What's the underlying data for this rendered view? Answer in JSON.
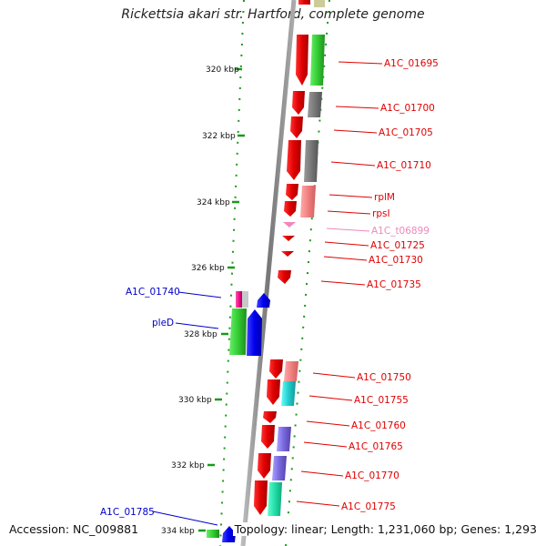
{
  "title": "Rickettsia akari str. Hartford, complete genome",
  "footer": {
    "accession": "Accession: NC_009881",
    "summary": "Topology: linear; Length: 1,231,060 bp; Genes: 1,293"
  },
  "scale_ticks": [
    "320 kbp",
    "322 kbp",
    "324 kbp",
    "326 kbp",
    "328 kbp",
    "330 kbp",
    "332 kbp",
    "334 kbp"
  ],
  "genes_forward": [
    {
      "name": "A1C_01695",
      "color": "#e00000"
    },
    {
      "name": "A1C_01700",
      "color": "#e00000"
    },
    {
      "name": "A1C_01705",
      "color": "#e00000"
    },
    {
      "name": "A1C_01710",
      "color": "#e00000"
    },
    {
      "name": "rplM",
      "color": "#e00000"
    },
    {
      "name": "rpsI",
      "color": "#e00000"
    },
    {
      "name": "A1C_t06899",
      "color": "#ee88bb"
    },
    {
      "name": "A1C_01725",
      "color": "#e00000"
    },
    {
      "name": "A1C_01730",
      "color": "#e00000"
    },
    {
      "name": "A1C_01735",
      "color": "#e00000"
    },
    {
      "name": "A1C_01750",
      "color": "#e00000"
    },
    {
      "name": "A1C_01755",
      "color": "#e00000"
    },
    {
      "name": "A1C_01760",
      "color": "#e00000"
    },
    {
      "name": "A1C_01765",
      "color": "#e00000"
    },
    {
      "name": "A1C_01770",
      "color": "#e00000"
    },
    {
      "name": "A1C_01775",
      "color": "#e00000"
    }
  ],
  "genes_reverse": [
    {
      "name": "A1C_01740",
      "color": "#0000cc"
    },
    {
      "name": "pleD",
      "color": "#0000cc"
    },
    {
      "name": "A1C_01785",
      "color": "#0000cc"
    }
  ]
}
